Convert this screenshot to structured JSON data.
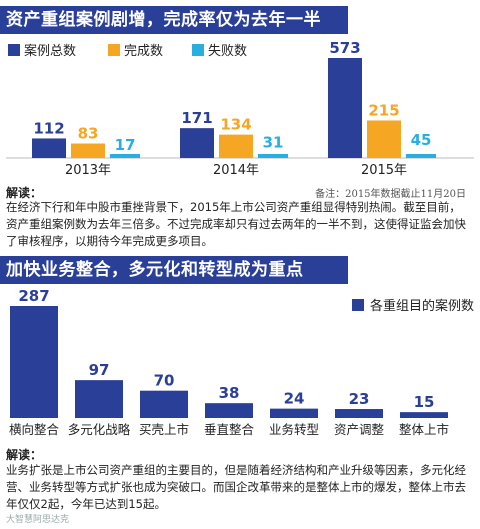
{
  "section1": {
    "title": "资产重组案例剧增，完成率仅为去年一半",
    "legend": [
      "案例总数",
      "完成数",
      "失败数"
    ],
    "note": "备注：2015年数据截止11月20日",
    "interp_label": "解读：",
    "interp_text": "在经济下行和年中股市重挫背景下，2015年上市公司资产重组显得特别热闹。截至目前，资产重组案例数为去年三倍多。不过完成率却只有过去两年的一半不到，这使得证监会加快了审核程序，以期待今年完成更多项目。"
  },
  "section2": {
    "title": "加快业务整合，多元化和转型成为重点",
    "legend": "各重组目的案例数",
    "interp_label": "解读：",
    "interp_text": "业务扩张是上市公司资产重组的主要目的，但是随着经济结构和产业升级等因素，多元化经营、业务转型等方式扩张也成为突破口。而国企改革带来的是整体上市的爆发，整体上市去年仅仅2起，今年已达到15起。"
  },
  "colors": {
    "total": "#2a3f97",
    "completed": "#f5a623",
    "failed": "#29aee0",
    "banner": "#2a3f97"
  },
  "watermark": "大智慧阿思达克",
  "chart_data": [
    {
      "type": "bar",
      "categories": [
        "2013年",
        "2014年",
        "2015年"
      ],
      "series": [
        {
          "name": "案例总数",
          "values": [
            112,
            171,
            573
          ]
        },
        {
          "name": "完成数",
          "values": [
            83,
            134,
            215
          ]
        },
        {
          "name": "失败数",
          "values": [
            17,
            31,
            45
          ]
        }
      ],
      "title": "资产重组案例剧增，完成率仅为去年一半",
      "xlabel": "",
      "ylabel": "",
      "ylim": [
        0,
        600
      ]
    },
    {
      "type": "bar",
      "categories": [
        "横向整合",
        "多元化战略",
        "买壳上市",
        "垂直整合",
        "业务转型",
        "资产调整",
        "整体上市"
      ],
      "series": [
        {
          "name": "各重组目的案例数",
          "values": [
            287,
            97,
            70,
            38,
            24,
            23,
            15
          ]
        }
      ],
      "title": "加快业务整合，多元化和转型成为重点",
      "xlabel": "",
      "ylabel": "",
      "ylim": [
        0,
        300
      ]
    }
  ]
}
